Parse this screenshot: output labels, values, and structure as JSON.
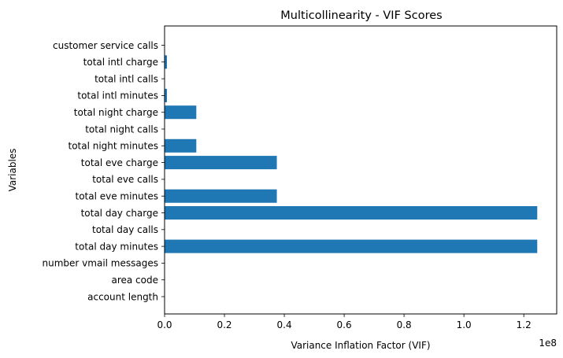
{
  "chart_data": {
    "type": "bar",
    "orientation": "horizontal",
    "title": "Multicollinearity - VIF Scores",
    "xlabel": "Variance Inflation Factor (VIF)",
    "ylabel": "Variables",
    "x_offset_label": "1e8",
    "xlim": [
      0,
      1.31
    ],
    "x_ticks": [
      0.0,
      0.2,
      0.4,
      0.6,
      0.8,
      1.0,
      1.2
    ],
    "x_tick_labels": [
      "0.0",
      "0.2",
      "0.4",
      "0.6",
      "0.8",
      "1.0",
      "1.2"
    ],
    "bar_color": "#1f77b4",
    "grid": false,
    "categories": [
      "account length",
      "area code",
      "number vmail messages",
      "total day minutes",
      "total day calls",
      "total day charge",
      "total eve minutes",
      "total eve calls",
      "total eve charge",
      "total night minutes",
      "total night calls",
      "total night charge",
      "total intl minutes",
      "total intl calls",
      "total intl charge",
      "customer service calls"
    ],
    "values": [
      0.0,
      0.0,
      0.0,
      1.245,
      0.0,
      1.245,
      0.375,
      0.0,
      0.375,
      0.106,
      0.0,
      0.106,
      0.008,
      0.0,
      0.008,
      0.0
    ]
  }
}
